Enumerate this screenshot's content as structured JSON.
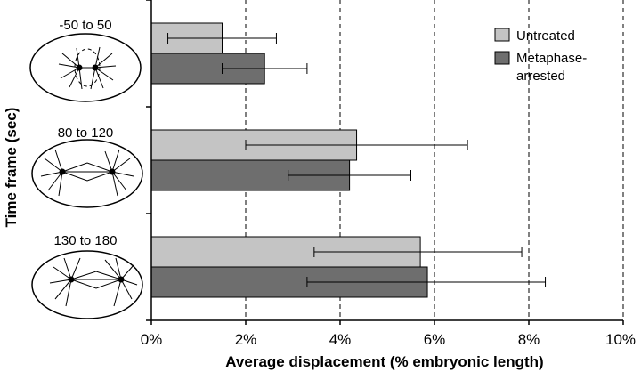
{
  "chart_data": {
    "type": "bar",
    "orientation": "horizontal",
    "xlabel": "Average displacement (% embryonic length)",
    "ylabel": "Time frame (sec)",
    "xlim": [
      0,
      10
    ],
    "xticks": [
      0,
      2,
      4,
      6,
      8,
      10
    ],
    "xtick_labels": [
      "0%",
      "2%",
      "4%",
      "6%",
      "8%",
      "10%"
    ],
    "grid": "vertical dashed at 2%, 4%, 6%, 8%, 10%",
    "legend_position": "top-right",
    "categories": [
      "-50 to 50",
      "80 to 120",
      "130 to 180"
    ],
    "series": [
      {
        "name": "Untreated",
        "color": "#c4c4c4",
        "values": [
          1.5,
          4.35,
          5.7
        ],
        "error_low": [
          0.35,
          2.0,
          3.45
        ],
        "error_high": [
          2.65,
          6.7,
          7.85
        ]
      },
      {
        "name": "Metaphase-arrested",
        "legend_lines": [
          "Metaphase-",
          "arrested"
        ],
        "color": "#6e6e6e",
        "values": [
          2.4,
          4.2,
          5.85
        ],
        "error_low": [
          1.5,
          2.9,
          3.3
        ],
        "error_high": [
          3.3,
          5.5,
          8.35
        ]
      }
    ]
  }
}
